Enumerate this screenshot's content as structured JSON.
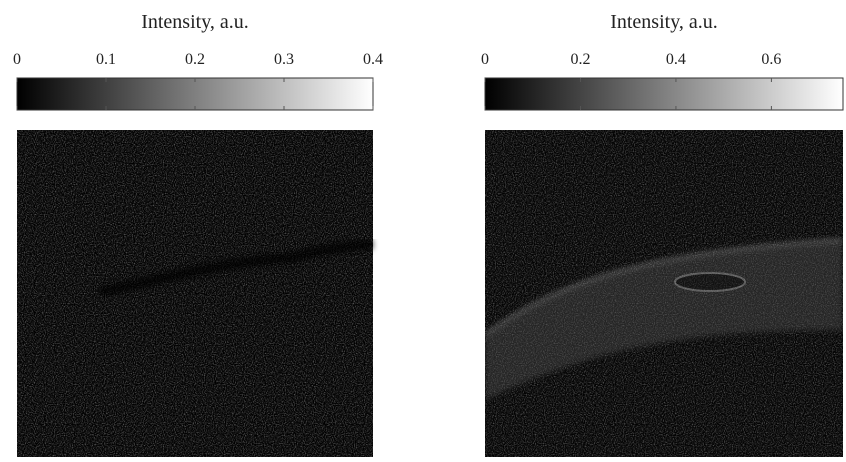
{
  "chart_data": [
    {
      "type": "image",
      "colorbar_label": "Intensity, a.u.",
      "colormap": "gray",
      "xlim": [
        0,
        0.4
      ],
      "xticks": [
        0,
        0.1,
        0.2,
        0.3,
        0.4
      ]
    },
    {
      "type": "image",
      "colorbar_label": "Intensity, a.u.",
      "colormap": "gray",
      "xlim": [
        0,
        0.75
      ],
      "xticks": [
        0,
        0.2,
        0.4,
        0.6
      ]
    }
  ]
}
